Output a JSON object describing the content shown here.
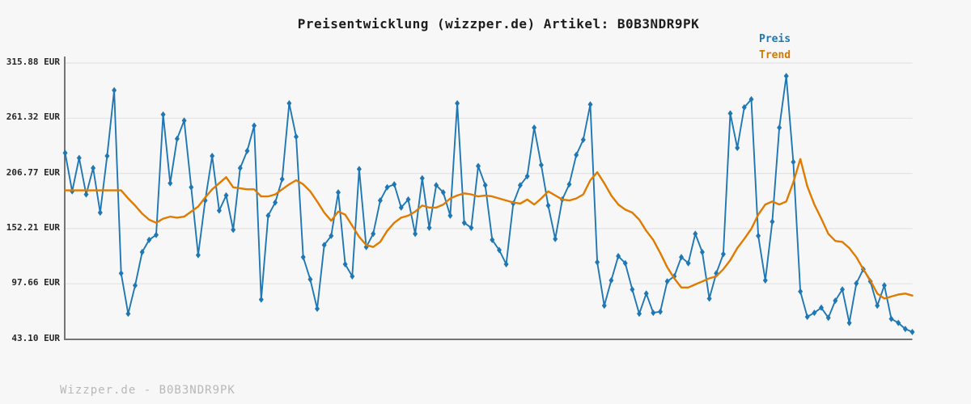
{
  "title": "Preisentwicklung (wizzper.de) Artikel: B0B3NDR9PK",
  "legend": {
    "price_label": "Preis",
    "trend_label": "Trend"
  },
  "watermark": "Wizzper.de - B0B3NDR9PK",
  "colors": {
    "price": "#1f77b4",
    "trend": "#e07b00",
    "grid": "#e3e3e3",
    "axis": "#757575",
    "background": "#f7f7f7",
    "title_text": "#1c1c1c",
    "tick_text": "#262626",
    "watermark_text": "#b8b8b8"
  },
  "y_axis": {
    "unit": "EUR",
    "tick_labels": [
      "315.88 EUR",
      "261.32 EUR",
      "206.77 EUR",
      "152.21 EUR",
      "97.66 EUR",
      "43.10 EUR"
    ],
    "tick_values": [
      315.88,
      261.32,
      206.77,
      152.21,
      97.66,
      43.1
    ]
  },
  "chart_data": {
    "type": "line",
    "title": "Preisentwicklung (wizzper.de) Artikel: B0B3NDR9PK",
    "ylabel": "EUR",
    "xlabel": "",
    "ylim": [
      43.1,
      315.88
    ],
    "grid": "horizontal",
    "legend_position": "top-right",
    "x_unit": "time (unlabeled)",
    "series": [
      {
        "name": "Preis",
        "color": "#1f77b4",
        "marker": "diamond",
        "values": [
          227,
          189,
          222,
          186,
          212,
          168,
          224,
          289,
          108,
          68,
          96,
          129,
          141,
          146,
          265,
          197,
          241,
          259,
          193,
          126,
          180,
          224,
          170,
          185,
          151,
          212,
          229,
          254,
          82,
          165,
          178,
          201,
          276,
          243,
          124,
          102,
          73,
          136,
          145,
          188,
          117,
          105,
          211,
          134,
          147,
          180,
          193,
          196,
          173,
          181,
          147,
          202,
          153,
          195,
          188,
          165,
          276,
          158,
          153,
          214,
          195,
          141,
          131,
          117,
          177,
          195,
          204,
          252,
          215,
          175,
          142,
          181,
          196,
          225,
          240,
          275,
          119,
          76,
          101,
          125,
          118,
          92,
          68,
          88,
          69,
          70,
          100,
          105,
          124,
          118,
          147,
          129,
          83,
          108,
          127,
          266,
          232,
          272,
          280,
          145,
          101,
          159,
          252,
          303,
          218,
          90,
          65,
          69,
          74,
          64,
          81,
          92,
          59,
          98,
          112,
          100,
          76,
          96,
          63,
          59,
          53,
          50
        ]
      },
      {
        "name": "Trend",
        "color": "#e07b00",
        "marker": "none",
        "values": [
          190,
          190,
          190,
          190,
          190,
          190,
          190,
          190,
          190,
          182,
          175,
          167,
          161,
          158,
          162,
          164,
          163,
          164,
          169,
          174,
          183,
          191,
          197,
          203,
          193,
          192,
          191,
          191,
          184,
          184,
          186,
          191,
          196,
          200,
          196,
          189,
          179,
          168,
          160,
          169,
          166,
          155,
          144,
          136,
          134,
          139,
          150,
          158,
          163,
          165,
          169,
          175,
          173,
          173,
          176,
          182,
          185,
          187,
          186,
          184,
          185,
          184,
          182,
          180,
          178,
          177,
          181,
          176,
          182,
          189,
          185,
          181,
          180,
          182,
          186,
          200,
          208,
          197,
          185,
          176,
          171,
          168,
          161,
          150,
          141,
          128,
          114,
          103,
          94,
          94,
          97,
          100,
          103,
          105,
          112,
          121,
          133,
          142,
          152,
          166,
          176,
          179,
          176,
          179,
          198,
          221,
          194,
          176,
          162,
          147,
          140,
          139,
          133,
          124,
          112,
          101,
          88,
          83,
          85,
          87,
          88,
          86
        ]
      }
    ]
  }
}
